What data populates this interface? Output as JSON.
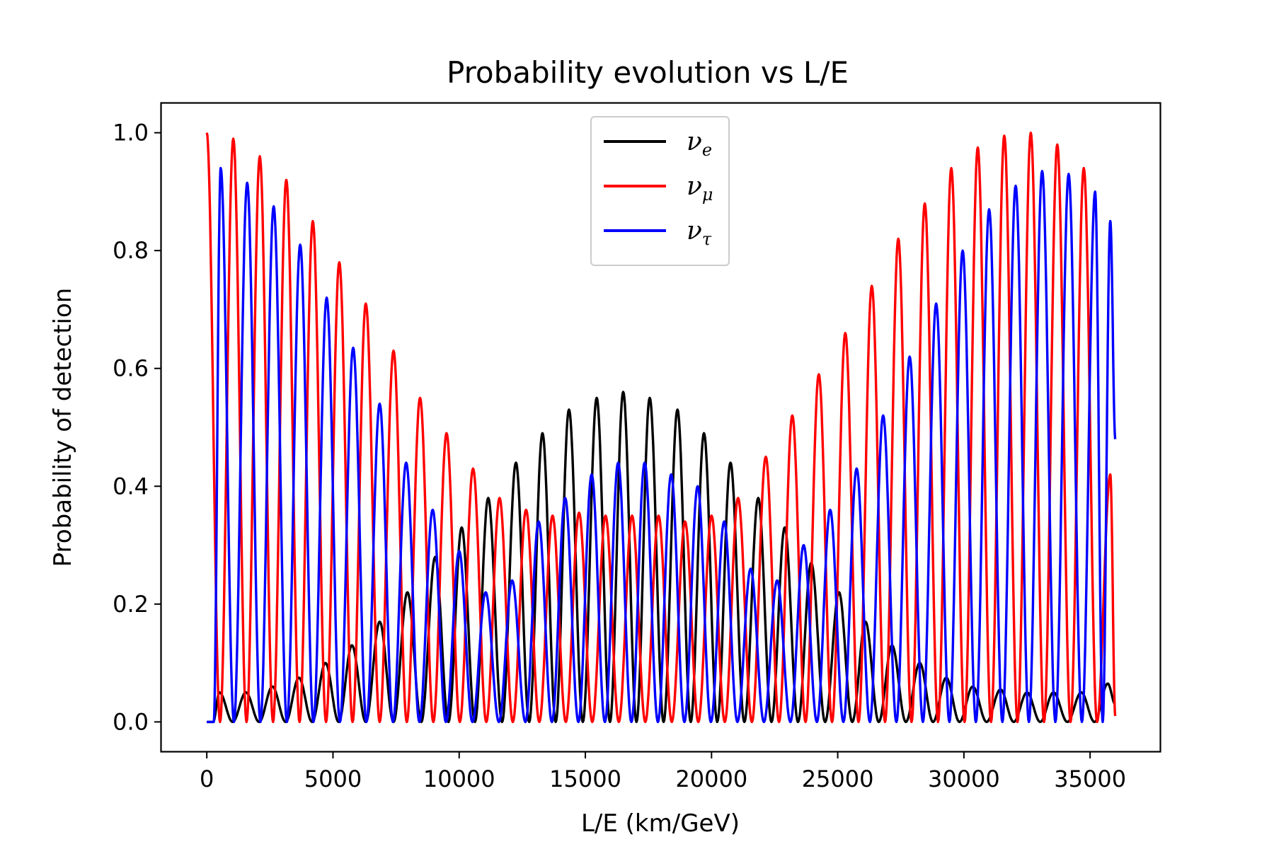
{
  "chart_data": {
    "type": "line",
    "title": "Probability evolution vs L/E",
    "xlabel": "L/E (km/GeV)",
    "ylabel": "Probability of detection",
    "xlim": [
      -1800,
      37800
    ],
    "ylim": [
      -0.05,
      1.05
    ],
    "xticks": [
      0,
      5000,
      10000,
      15000,
      20000,
      25000,
      30000,
      35000
    ],
    "yticks": [
      0.0,
      0.2,
      0.4,
      0.6,
      0.8,
      1.0
    ],
    "ytick_labels": [
      "0.0",
      "0.2",
      "0.4",
      "0.6",
      "0.8",
      "1.0"
    ],
    "grid": false,
    "legend_position": "top-center",
    "x_range": [
      0,
      36000
    ],
    "series": [
      {
        "name": "ν_e",
        "label_main": "ν",
        "label_sub": "e",
        "color": "#000000",
        "peaks_x": [
          500,
          1550,
          2600,
          3650,
          4700,
          5750,
          6850,
          7950,
          9050,
          10100,
          11150,
          12250,
          13300,
          14350,
          15450,
          16500,
          17550,
          18650,
          19700,
          20750,
          21850,
          22900,
          23950,
          25050,
          26100,
          27150,
          28250,
          29300,
          30350,
          31450,
          32500,
          33550,
          34650,
          35700
        ],
        "peaks_y": [
          0.05,
          0.05,
          0.06,
          0.075,
          0.1,
          0.13,
          0.17,
          0.22,
          0.28,
          0.33,
          0.38,
          0.44,
          0.49,
          0.53,
          0.55,
          0.56,
          0.55,
          0.53,
          0.49,
          0.44,
          0.38,
          0.33,
          0.27,
          0.22,
          0.17,
          0.13,
          0.1,
          0.075,
          0.06,
          0.055,
          0.05,
          0.05,
          0.05,
          0.065
        ],
        "end_value": 0.03
      },
      {
        "name": "ν_μ",
        "label_main": "ν",
        "label_sub": "μ",
        "color": "#ff0000",
        "peaks_x": [
          0,
          1050,
          2100,
          3150,
          4200,
          5250,
          6300,
          7400,
          8450,
          9500,
          10550,
          11600,
          12650,
          13700,
          14750,
          15800,
          16850,
          17900,
          18950,
          20000,
          21050,
          22150,
          23200,
          24250,
          25300,
          26350,
          27400,
          28450,
          29500,
          30550,
          31600,
          32650,
          33700,
          34750,
          35800
        ],
        "peaks_y": [
          1.0,
          0.99,
          0.96,
          0.92,
          0.85,
          0.78,
          0.71,
          0.63,
          0.55,
          0.49,
          0.43,
          0.38,
          0.36,
          0.35,
          0.355,
          0.35,
          0.35,
          0.35,
          0.34,
          0.35,
          0.38,
          0.45,
          0.52,
          0.59,
          0.66,
          0.74,
          0.82,
          0.88,
          0.94,
          0.975,
          0.995,
          1.0,
          0.98,
          0.94,
          0.42
        ],
        "end_value": 0.01
      },
      {
        "name": "ν_τ",
        "label_main": "ν",
        "label_sub": "τ",
        "color": "#0000ff",
        "peaks_x": [
          550,
          1600,
          2650,
          3700,
          4750,
          5800,
          6850,
          7900,
          8950,
          10000,
          11050,
          12100,
          13150,
          14200,
          15250,
          16300,
          17350,
          18400,
          19450,
          20500,
          21550,
          22600,
          23650,
          24700,
          25750,
          26800,
          27850,
          28900,
          29950,
          31000,
          32050,
          33100,
          34150,
          35200,
          35800
        ],
        "peaks_y": [
          0.94,
          0.915,
          0.875,
          0.81,
          0.72,
          0.635,
          0.54,
          0.44,
          0.36,
          0.29,
          0.22,
          0.24,
          0.34,
          0.38,
          0.42,
          0.44,
          0.44,
          0.42,
          0.4,
          0.34,
          0.26,
          0.24,
          0.3,
          0.36,
          0.43,
          0.52,
          0.62,
          0.71,
          0.8,
          0.87,
          0.91,
          0.935,
          0.93,
          0.9,
          0.85
        ],
        "end_value": 0.48
      }
    ]
  }
}
